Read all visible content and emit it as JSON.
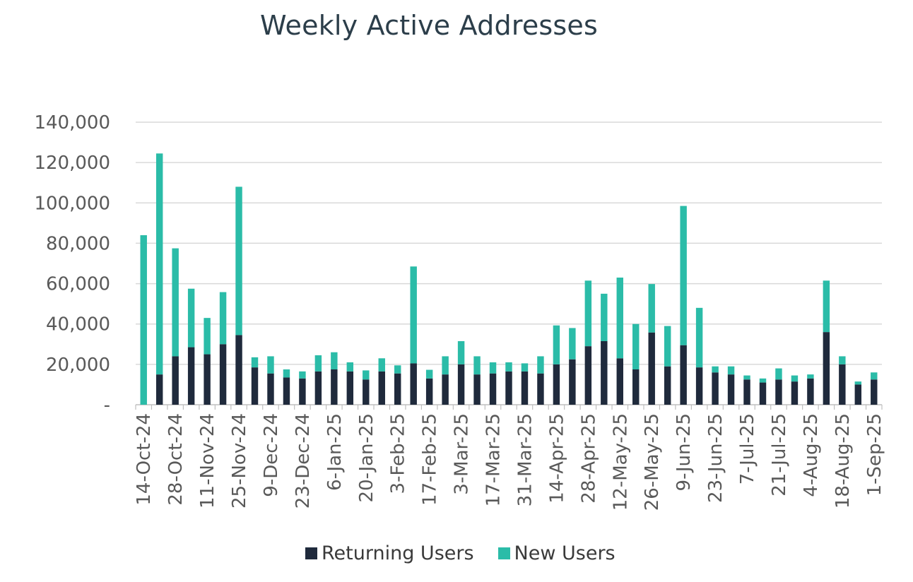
{
  "title": "Weekly Active Addresses",
  "colors": {
    "returning": "#1f2a3c",
    "new": "#2bbca8",
    "grid": "#d9d9d9",
    "axis": "#bfbfbf",
    "text": "#595959"
  },
  "legend": {
    "returning": "Returning Users",
    "new": "New Users"
  },
  "chart_data": {
    "type": "bar",
    "stacked": true,
    "title": "Weekly Active Addresses",
    "xlabel": "",
    "ylabel": "",
    "ylim": [
      0,
      140000
    ],
    "yticks": [
      0,
      20000,
      40000,
      60000,
      80000,
      100000,
      120000,
      140000
    ],
    "ytick_labels": [
      "-",
      "20,000",
      "40,000",
      "60,000",
      "80,000",
      "100,000",
      "120,000",
      "140,000"
    ],
    "grid": true,
    "legend_position": "bottom",
    "categories": [
      "14-Oct-24",
      "21-Oct-24",
      "28-Oct-24",
      "4-Nov-24",
      "11-Nov-24",
      "18-Nov-24",
      "25-Nov-24",
      "2-Dec-24",
      "9-Dec-24",
      "16-Dec-24",
      "23-Dec-24",
      "30-Dec-24",
      "6-Jan-25",
      "13-Jan-25",
      "20-Jan-25",
      "27-Jan-25",
      "3-Feb-25",
      "10-Feb-25",
      "17-Feb-25",
      "24-Feb-25",
      "3-Mar-25",
      "10-Mar-25",
      "17-Mar-25",
      "24-Mar-25",
      "31-Mar-25",
      "7-Apr-25",
      "14-Apr-25",
      "21-Apr-25",
      "28-Apr-25",
      "5-May-25",
      "12-May-25",
      "19-May-25",
      "26-May-25",
      "2-Jun-25",
      "9-Jun-25",
      "16-Jun-25",
      "23-Jun-25",
      "30-Jun-25",
      "7-Jul-25",
      "14-Jul-25",
      "21-Jul-25",
      "28-Jul-25",
      "4-Aug-25",
      "11-Aug-25",
      "18-Aug-25",
      "25-Aug-25",
      "1-Sep-25"
    ],
    "tick_labels": [
      "14-Oct-24",
      "28-Oct-24",
      "11-Nov-24",
      "25-Nov-24",
      "9-Dec-24",
      "23-Dec-24",
      "6-Jan-25",
      "20-Jan-25",
      "3-Feb-25",
      "17-Feb-25",
      "3-Mar-25",
      "17-Mar-25",
      "31-Mar-25",
      "14-Apr-25",
      "28-Apr-25",
      "12-May-25",
      "26-May-25",
      "9-Jun-25",
      "23-Jun-25",
      "7-Jul-25",
      "21-Jul-25",
      "4-Aug-25",
      "18-Aug-25",
      "1-Sep-25"
    ],
    "series": [
      {
        "name": "Returning Users",
        "values": [
          0,
          15000,
          24000,
          28500,
          25000,
          30000,
          34500,
          18500,
          15500,
          13500,
          13000,
          16500,
          17500,
          16500,
          12500,
          16500,
          15500,
          20500,
          13000,
          15000,
          20000,
          15000,
          15500,
          16500,
          16500,
          15500,
          20000,
          22500,
          29000,
          31500,
          23000,
          17500,
          35800,
          19000,
          29500,
          18500,
          16000,
          15000,
          12500,
          11000,
          12500,
          11500,
          13000,
          36000,
          20000,
          10000,
          12500
        ]
      },
      {
        "name": "New Users",
        "values": [
          84000,
          109500,
          53500,
          29000,
          18000,
          25800,
          73500,
          5000,
          8500,
          4000,
          3500,
          8000,
          8500,
          4500,
          4500,
          6500,
          4000,
          48000,
          4300,
          9000,
          11500,
          9000,
          5500,
          4500,
          4000,
          8500,
          19300,
          15500,
          32500,
          23500,
          40000,
          22500,
          24000,
          20000,
          69000,
          29500,
          3000,
          4000,
          2000,
          2000,
          5500,
          3000,
          2000,
          25500,
          4000,
          1500,
          3500
        ]
      }
    ]
  }
}
